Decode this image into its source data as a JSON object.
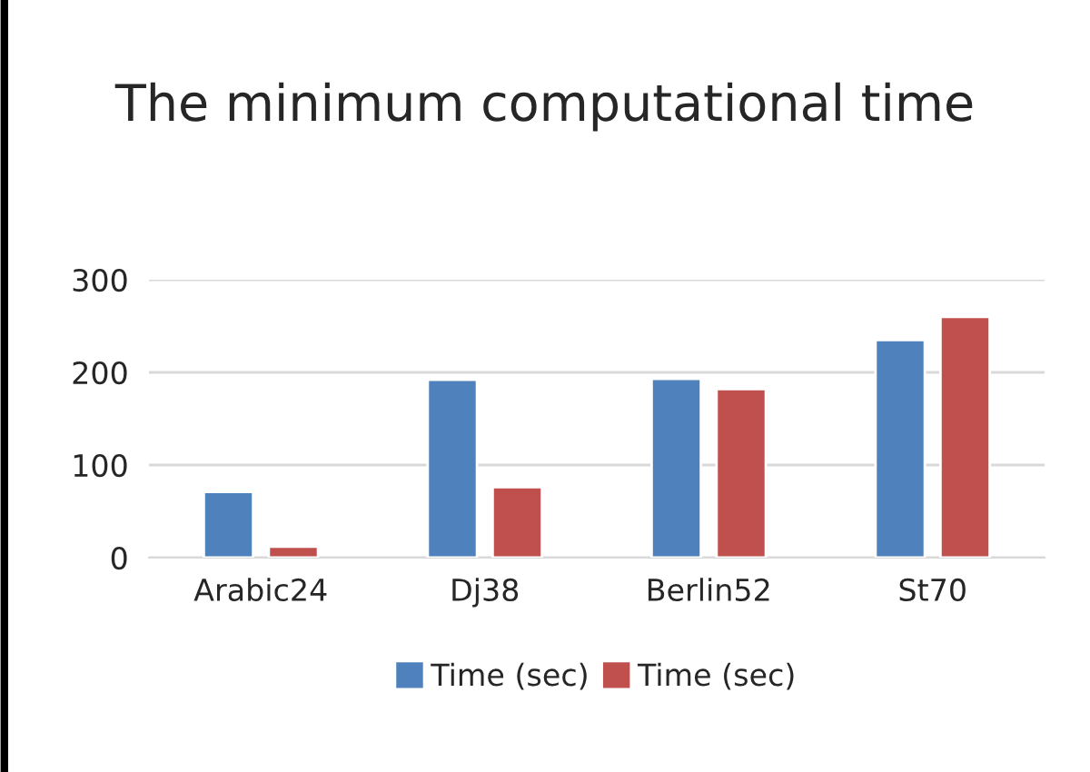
{
  "chart_data": {
    "type": "bar",
    "title": "The minimum computational time",
    "categories": [
      "Arabic24",
      "Dj38",
      "Berlin52",
      "St70"
    ],
    "series": [
      {
        "name": "Time (sec)",
        "color": "#4f81bd",
        "values": [
          71,
          192,
          193,
          235
        ]
      },
      {
        "name": "Time (sec)",
        "color": "#c0504d",
        "values": [
          12,
          76,
          182,
          260
        ]
      }
    ],
    "ylim": [
      0,
      300
    ],
    "yticks": [
      0,
      100,
      200,
      300
    ],
    "grid": "y",
    "legend": "bottom"
  }
}
